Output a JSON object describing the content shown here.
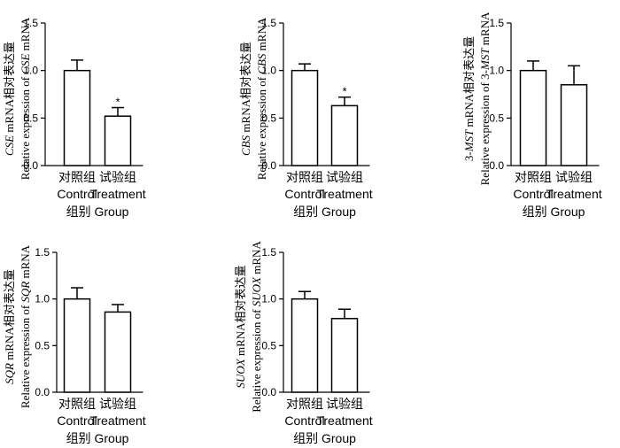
{
  "chart_data": [
    {
      "type": "bar",
      "categories": [
        "对照组|Control",
        "试验组|Treatment"
      ],
      "values": [
        1.0,
        0.52
      ],
      "errors": [
        0.11,
        0.09
      ],
      "significance": [
        "",
        "*"
      ],
      "ylim": [
        0,
        1.5
      ],
      "yticks": [
        "0.0",
        "0.5",
        "1.0",
        "1.5"
      ],
      "ylabel_line1": "CSE mRNA相对表达量",
      "ylabel_line2": "Relative expression of CSE mRNA",
      "xlabel": "组别  Group"
    },
    {
      "type": "bar",
      "categories": [
        "对照组|Control",
        "试验组|Treatment"
      ],
      "values": [
        1.0,
        0.63
      ],
      "errors": [
        0.07,
        0.09
      ],
      "significance": [
        "",
        "*"
      ],
      "ylim": [
        0,
        1.5
      ],
      "yticks": [
        "0.0",
        "0.5",
        "1.0",
        "1.5"
      ],
      "ylabel_line1": "CBS mRNA相对表达量",
      "ylabel_line2": "Relative expression of CBS mRNA",
      "xlabel": "组别  Group"
    },
    {
      "type": "bar",
      "categories": [
        "对照组|Control",
        "试验组|Treatment"
      ],
      "values": [
        1.0,
        0.85
      ],
      "errors": [
        0.1,
        0.2
      ],
      "significance": [
        "",
        ""
      ],
      "ylim": [
        0,
        1.5
      ],
      "yticks": [
        "0.0",
        "0.5",
        "1.0",
        "1.5"
      ],
      "ylabel_line1": "3-MST mRNA相对表达量",
      "ylabel_line2": "Relative expression of 3-MST mRNA",
      "xlabel": "组别  Group"
    },
    {
      "type": "bar",
      "categories": [
        "对照组|Control",
        "试验组|Treatment"
      ],
      "values": [
        1.0,
        0.86
      ],
      "errors": [
        0.12,
        0.08
      ],
      "significance": [
        "",
        ""
      ],
      "ylim": [
        0,
        1.5
      ],
      "yticks": [
        "0.0",
        "0.5",
        "1.0",
        "1.5"
      ],
      "ylabel_line1": "SQR mRNA相对表达量",
      "ylabel_line2": "Relative expression of SQR mRNA",
      "xlabel": "组别  Group"
    },
    {
      "type": "bar",
      "categories": [
        "对照组|Control",
        "试验组|Treatment"
      ],
      "values": [
        1.0,
        0.79
      ],
      "errors": [
        0.08,
        0.1
      ],
      "significance": [
        "",
        ""
      ],
      "ylim": [
        0,
        1.5
      ],
      "yticks": [
        "0.0",
        "0.5",
        "1.0",
        "1.5"
      ],
      "ylabel_line1": "SUOX mRNA相对表达量",
      "ylabel_line2": "Relative expression of SUOX mRNA",
      "xlabel": "组别  Group"
    }
  ]
}
